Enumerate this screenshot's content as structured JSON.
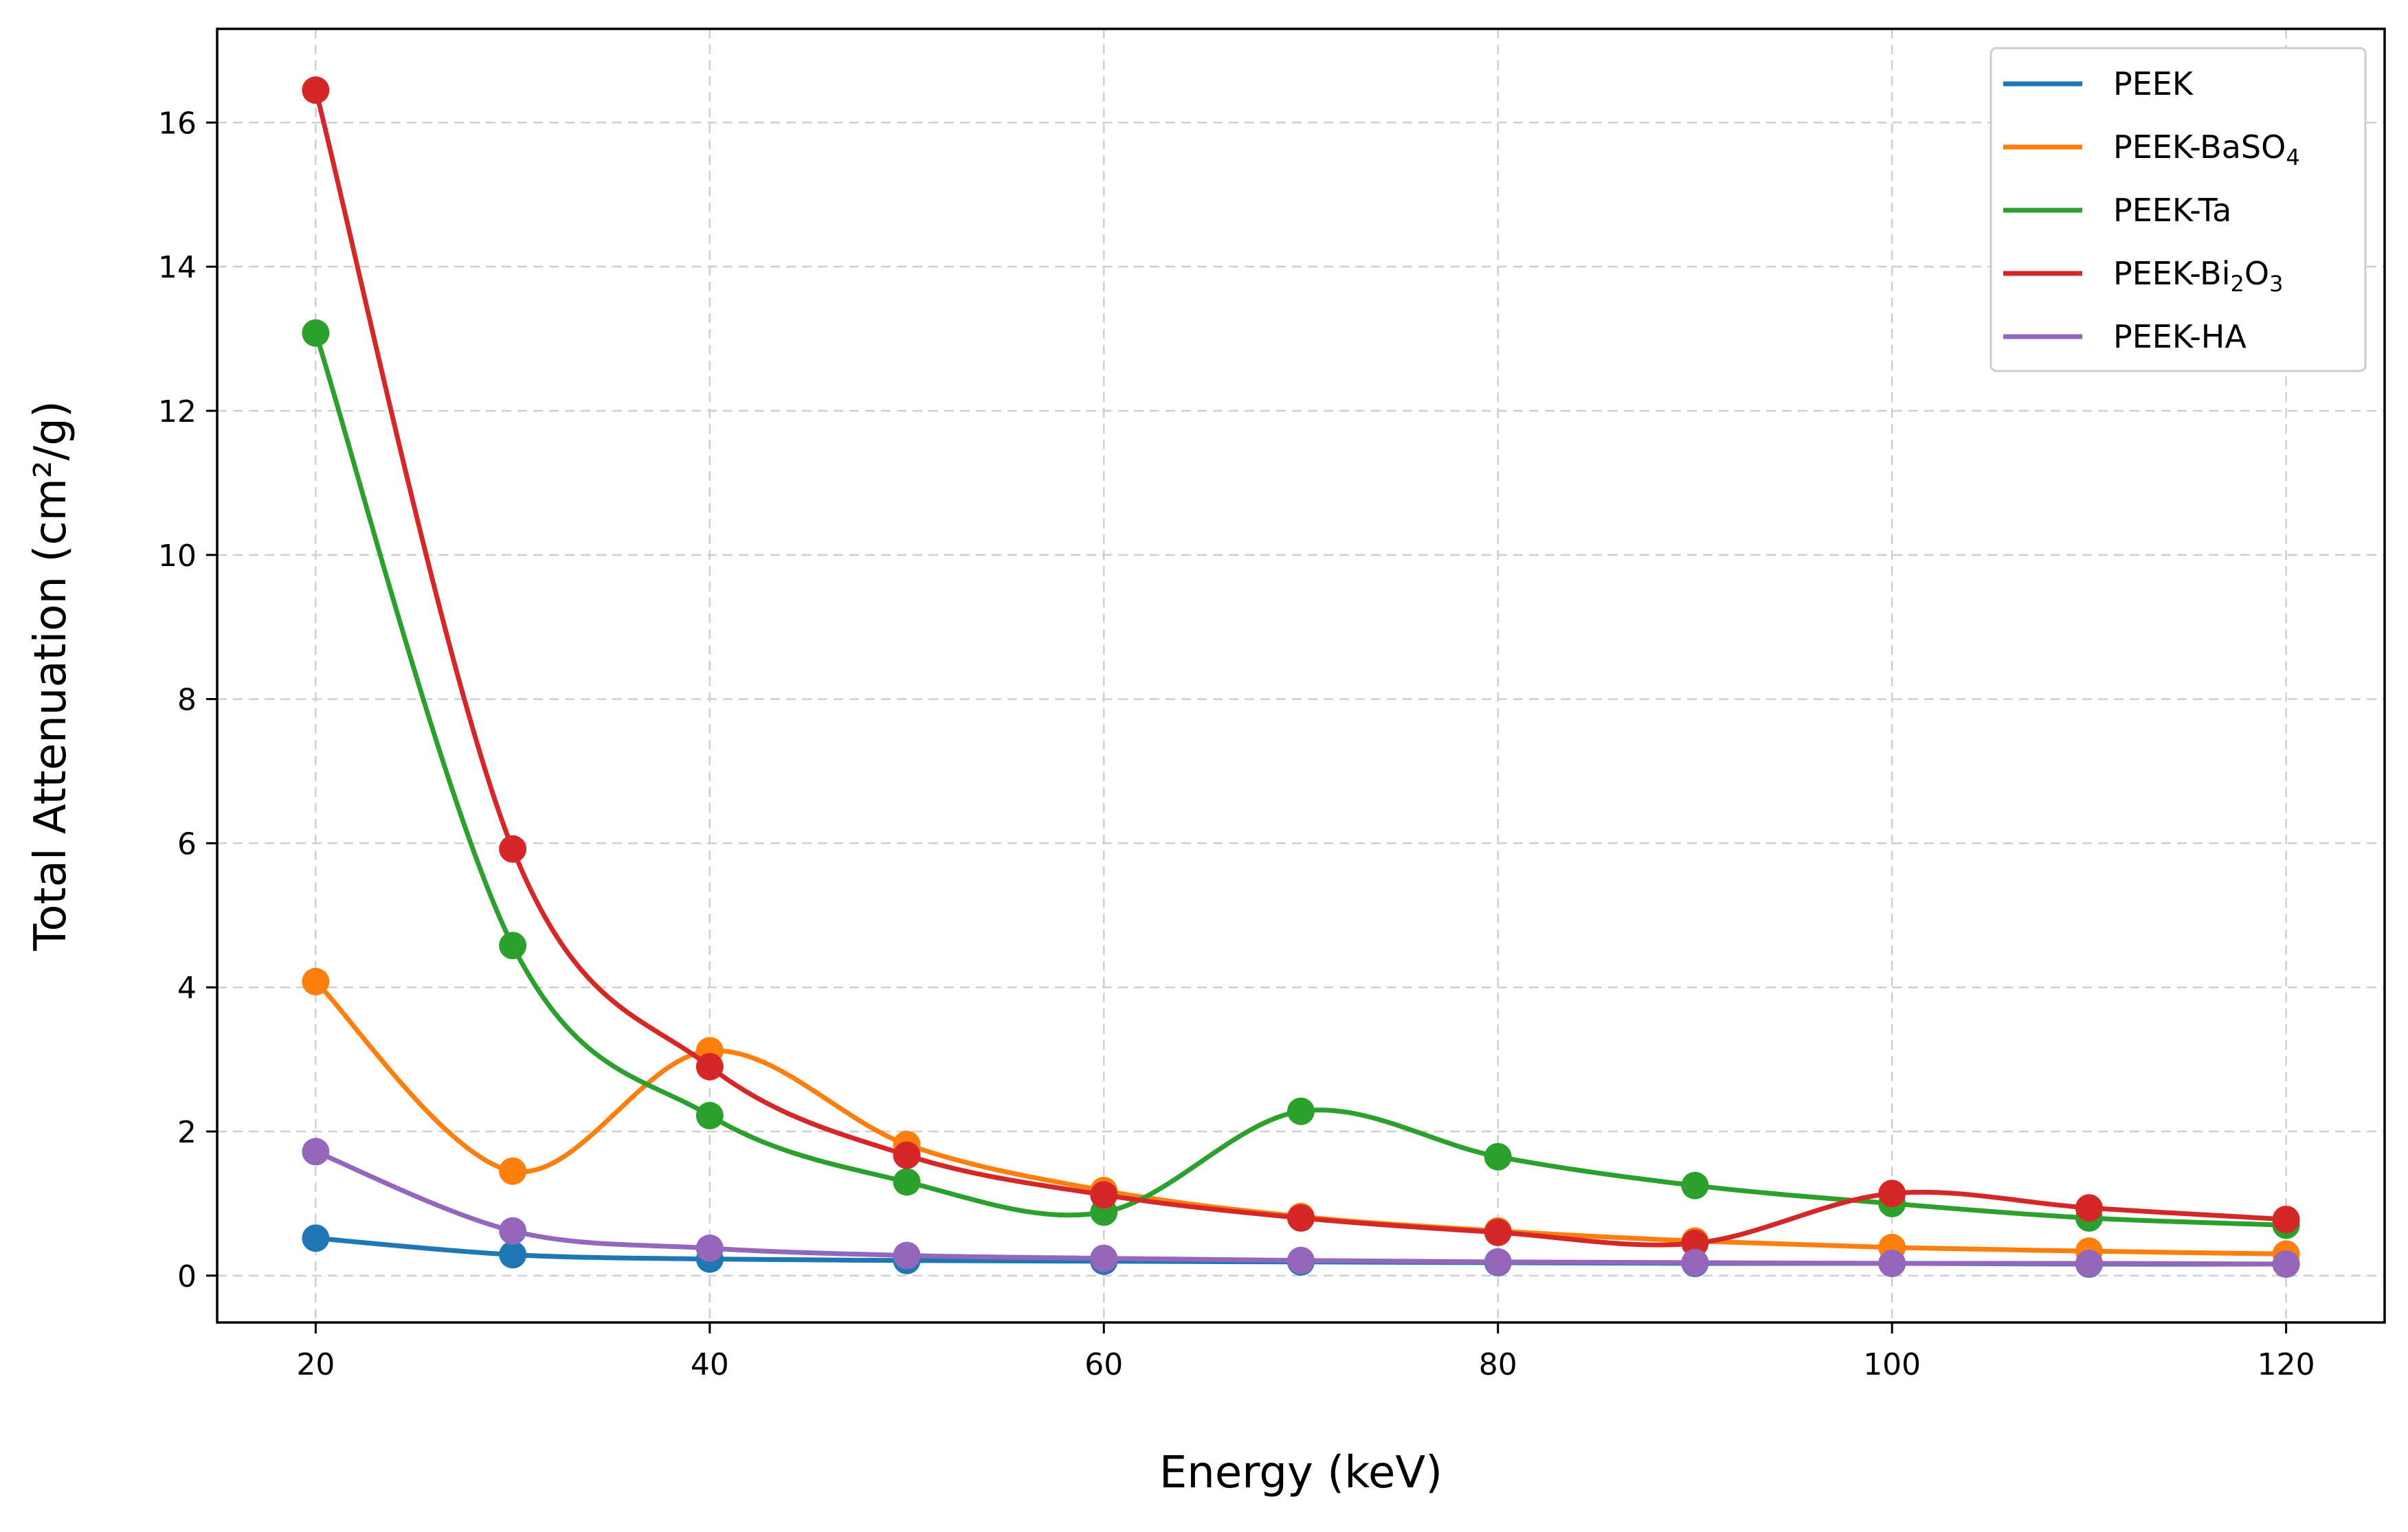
{
  "chart_data": {
    "type": "line",
    "title": "",
    "xlabel": "Energy (keV)",
    "ylabel": "Total Attenuation (cm²/g)",
    "x": [
      20,
      30,
      40,
      50,
      60,
      70,
      80,
      90,
      100,
      110,
      120
    ],
    "xlim": [
      15,
      125
    ],
    "ylim": [
      -0.65,
      17.3
    ],
    "xticks": [
      20,
      40,
      60,
      80,
      100,
      120
    ],
    "yticks": [
      0,
      2,
      4,
      6,
      8,
      10,
      12,
      14,
      16
    ],
    "grid": true,
    "legend_position": "top-right",
    "series": [
      {
        "name": "PEEK",
        "label_main": "PEEK",
        "label_parts": [],
        "color": "#1f77b4",
        "values": [
          0.52,
          0.29,
          0.23,
          0.21,
          0.2,
          0.19,
          0.18,
          0.17,
          0.17,
          0.16,
          0.16
        ]
      },
      {
        "name": "PEEK-BaSO4",
        "label_main": "PEEK-BaSO",
        "label_parts": [
          {
            "text": "4",
            "sub": true
          }
        ],
        "color": "#ff7f0e",
        "values": [
          4.08,
          1.45,
          3.12,
          1.82,
          1.18,
          0.82,
          0.62,
          0.48,
          0.39,
          0.34,
          0.3
        ]
      },
      {
        "name": "PEEK-Ta",
        "label_main": "PEEK-Ta",
        "label_parts": [],
        "color": "#2ca02c",
        "values": [
          13.08,
          4.58,
          2.22,
          1.3,
          0.88,
          2.28,
          1.65,
          1.25,
          1.0,
          0.8,
          0.7
        ]
      },
      {
        "name": "PEEK-Bi2O3",
        "label_main": "PEEK-Bi",
        "label_parts": [
          {
            "text": "2",
            "sub": true
          },
          {
            "text": "O",
            "sub": false
          },
          {
            "text": "3",
            "sub": true
          }
        ],
        "color": "#d62728",
        "values": [
          16.45,
          5.92,
          2.9,
          1.67,
          1.12,
          0.8,
          0.6,
          0.45,
          1.14,
          0.94,
          0.78
        ]
      },
      {
        "name": "PEEK-HA",
        "label_main": "PEEK-HA",
        "label_parts": [],
        "color": "#9467bd",
        "values": [
          1.72,
          0.62,
          0.38,
          0.28,
          0.24,
          0.21,
          0.19,
          0.18,
          0.17,
          0.17,
          0.16
        ]
      }
    ]
  }
}
